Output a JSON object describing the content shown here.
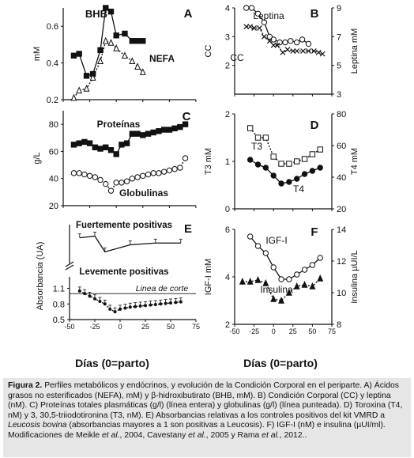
{
  "figure": {
    "x_axis_title": "Días (0=parto)",
    "x_ticks": [
      -50,
      -25,
      0,
      25,
      50,
      75
    ]
  },
  "chart_data": [
    {
      "type": "line",
      "panel": "A",
      "ylabel": "mM",
      "ylim": [
        0.2,
        0.7
      ],
      "yticks": [
        0.2,
        0.4,
        0.6
      ],
      "xlim": [
        -50,
        75
      ],
      "series": [
        {
          "name": "BHB",
          "style": "filled-square-solid",
          "x": [
            -40,
            -35,
            -28,
            -22,
            -15,
            -10,
            -5,
            0,
            8,
            15,
            20,
            25
          ],
          "y": [
            0.44,
            0.45,
            0.33,
            0.34,
            0.47,
            0.7,
            0.68,
            0.55,
            0.56,
            0.52,
            0.52,
            0.52
          ]
        },
        {
          "name": "NEFA",
          "style": "open-triangle-dotted",
          "x": [
            -40,
            -35,
            -28,
            -22,
            -15,
            -10,
            -5,
            0,
            8,
            15,
            20,
            25
          ],
          "y": [
            0.21,
            0.25,
            0.26,
            0.32,
            0.41,
            0.52,
            0.51,
            0.48,
            0.44,
            0.41,
            0.38,
            0.35
          ]
        }
      ],
      "labels": [
        {
          "text": "BHB"
        },
        {
          "text": "NEFA"
        }
      ]
    },
    {
      "type": "line",
      "panel": "B",
      "ylabel": "CC",
      "ylabel_right": "Leptina mM",
      "ylim": [
        1,
        4
      ],
      "yticks": [
        2,
        3,
        4
      ],
      "ylim_right": [
        3,
        9
      ],
      "yticks_right": [
        3,
        5,
        7,
        9
      ],
      "xlim": [
        -50,
        75
      ],
      "series": [
        {
          "name": "Leptina",
          "axis": "right",
          "style": "open-circle-solid",
          "x": [
            -35,
            -28,
            -20,
            -12,
            -5,
            0,
            8,
            15,
            22,
            30,
            37,
            45
          ],
          "y": [
            9.0,
            9.0,
            8.6,
            8.0,
            7.0,
            6.8,
            6.6,
            6.6,
            6.7,
            6.6,
            6.8,
            6.5
          ]
        },
        {
          "name": "CC",
          "axis": "left",
          "style": "cross-dotted",
          "x": [
            -35,
            -30,
            -25,
            -18,
            -12,
            -5,
            0,
            5,
            12,
            18,
            25,
            30,
            38,
            45,
            52,
            58,
            63
          ],
          "y": [
            3.35,
            3.35,
            3.3,
            3.3,
            3.0,
            2.85,
            2.7,
            2.7,
            2.45,
            2.55,
            2.5,
            2.5,
            2.5,
            2.5,
            2.5,
            2.45,
            2.4
          ]
        }
      ],
      "labels": [
        {
          "text": "Leptina"
        },
        {
          "text": "CC"
        }
      ]
    },
    {
      "type": "line",
      "panel": "C",
      "ylabel": "g/L",
      "ylim": [
        20,
        90
      ],
      "yticks": [
        20,
        40,
        60,
        80
      ],
      "xlim": [
        -50,
        75
      ],
      "series": [
        {
          "name": "Proteínas",
          "style": "filled-square-solid",
          "x": [
            -40,
            -35,
            -30,
            -25,
            -20,
            -15,
            -10,
            -5,
            0,
            5,
            10,
            15,
            20,
            25,
            30,
            35,
            40,
            45,
            50,
            55,
            60,
            65
          ],
          "y": [
            65,
            66,
            67,
            66,
            63,
            62,
            63,
            61,
            58,
            65,
            66,
            73,
            73,
            72,
            73,
            74,
            75,
            76,
            76,
            77,
            78,
            80
          ]
        },
        {
          "name": "Globulinas",
          "style": "open-circle-dotted",
          "x": [
            -40,
            -35,
            -30,
            -25,
            -20,
            -15,
            -10,
            -5,
            0,
            5,
            10,
            15,
            20,
            25,
            30,
            35,
            40,
            45,
            50,
            55,
            60,
            65
          ],
          "y": [
            44,
            44,
            43,
            42,
            41,
            39,
            36,
            31,
            37,
            37,
            38,
            40,
            41,
            42,
            43,
            44,
            44,
            45,
            46,
            47,
            48,
            55
          ]
        }
      ],
      "labels": [
        {
          "text": "Proteínas"
        },
        {
          "text": "Globulinas"
        }
      ]
    },
    {
      "type": "line",
      "panel": "D",
      "ylabel": "T3 mM",
      "ylabel_right": "T4 mM",
      "ylim": [
        0,
        2
      ],
      "yticks": [
        0,
        1,
        2
      ],
      "ylim_right": [
        20,
        80
      ],
      "yticks_right": [
        20,
        40,
        60,
        80
      ],
      "xlim": [
        -50,
        75
      ],
      "series": [
        {
          "name": "T3",
          "axis": "left",
          "style": "open-square-dotted",
          "x": [
            -30,
            -20,
            -10,
            0,
            10,
            20,
            30,
            40,
            50,
            60
          ],
          "y": [
            1.7,
            1.5,
            1.5,
            1.1,
            0.95,
            0.95,
            1.0,
            1.05,
            1.15,
            1.25
          ]
        },
        {
          "name": "T4",
          "axis": "right",
          "style": "filled-circle-solid",
          "x": [
            -30,
            -20,
            -10,
            0,
            10,
            20,
            30,
            40,
            50,
            60
          ],
          "y": [
            51,
            48,
            46,
            41,
            36,
            37,
            39,
            42,
            44,
            46
          ]
        }
      ],
      "labels": [
        {
          "text": "T3"
        },
        {
          "text": "T4"
        }
      ]
    },
    {
      "type": "line",
      "panel": "E",
      "ylabel": "Absorbancia (UA)",
      "ylim_top": [
        3.2,
        3.9
      ],
      "yticks_top": [],
      "ylim_bottom": [
        0.5,
        1.2
      ],
      "yticks_bottom": [
        0.5,
        0.8,
        1.1
      ],
      "xlim": [
        -50,
        75
      ],
      "cutoff_value": 1.0,
      "series": [
        {
          "name": "Fuertemente positivas",
          "style": "solid-error-bars",
          "x": [
            -40,
            -25,
            -15,
            10,
            35,
            60
          ],
          "y": [
            3.75,
            3.8,
            3.35,
            3.55,
            3.6,
            3.6
          ]
        },
        {
          "name": "Levemente positivas",
          "style": "filled-dotted-error-bars",
          "x": [
            -40,
            -35,
            -30,
            -25,
            -20,
            -15,
            -10,
            -5,
            0,
            5,
            10,
            15,
            20,
            25,
            30,
            35,
            40,
            45,
            50,
            55,
            60
          ],
          "y": [
            1.05,
            1.0,
            0.95,
            0.9,
            0.85,
            0.8,
            0.7,
            0.65,
            0.7,
            0.72,
            0.74,
            0.75,
            0.76,
            0.77,
            0.78,
            0.79,
            0.8,
            0.81,
            0.82,
            0.83,
            0.84
          ]
        }
      ],
      "labels": [
        {
          "text": "Fuertemente positivas"
        },
        {
          "text": "Levemente positivas"
        },
        {
          "text": "Linea de corte"
        }
      ]
    },
    {
      "type": "line",
      "panel": "F",
      "ylabel": "IGF-I mM",
      "ylabel_right": "Insulina µUI/L",
      "ylim": [
        2,
        6
      ],
      "yticks": [
        2,
        4,
        6
      ],
      "ylim_right": [
        8,
        14
      ],
      "yticks_right": [
        8,
        10,
        12,
        14
      ],
      "xlim": [
        -50,
        75
      ],
      "series": [
        {
          "name": "IGF-I",
          "axis": "left",
          "style": "open-circle-solid",
          "x": [
            -30,
            -20,
            -10,
            0,
            10,
            20,
            30,
            40,
            50,
            60
          ],
          "y": [
            5.7,
            5.3,
            5.0,
            4.4,
            3.9,
            3.9,
            4.1,
            4.3,
            4.5,
            4.8
          ]
        },
        {
          "name": "Insulina",
          "axis": "right",
          "style": "filled-triangle-dotted",
          "x": [
            -40,
            -30,
            -20,
            -10,
            0,
            10,
            20,
            30,
            40,
            50,
            60
          ],
          "y": [
            10.7,
            10.7,
            10.8,
            10.6,
            9.6,
            9.5,
            10.0,
            10.4,
            10.5,
            10.4,
            10.9
          ]
        }
      ],
      "labels": [
        {
          "text": "IGF-I"
        },
        {
          "text": "Insulina"
        }
      ]
    }
  ],
  "caption": {
    "label": "Figura 2.",
    "parts": [
      {
        "t": " Perfiles metabólicos y endócrinos, y evolución de la Condición Corporal en el periparte. A) Ácidos grasos no esterificados (NEFA), mM) y β-hidroxibutirato (BHB, mM). B) Condición Corporal (CC) y leptina (nM). C) Proteínas totales plasmáticas (g/l) (línea entera) y globulinas (g/l) (línea punteada). D) Toroxina (T4, nM) y 3, 30,5-triiodotironina (T3, nM). E) Absorbancias relativas a los controles positivos del kit VMRD a ",
        "i": false
      },
      {
        "t": "Leucosis bovina",
        "i": true
      },
      {
        "t": " (absorbancias mayores a 1 son positivas a Leucosis). F) IGF-I (nM) e insulina (µUI/ml). Modificaciones de Meikle ",
        "i": false
      },
      {
        "t": "et al.",
        "i": true
      },
      {
        "t": ", 2004, Cavestany ",
        "i": false
      },
      {
        "t": "et al.",
        "i": true
      },
      {
        "t": ", 2005 y Rama ",
        "i": false
      },
      {
        "t": "et al.",
        "i": true
      },
      {
        "t": ", 2012..",
        "i": false
      }
    ]
  }
}
